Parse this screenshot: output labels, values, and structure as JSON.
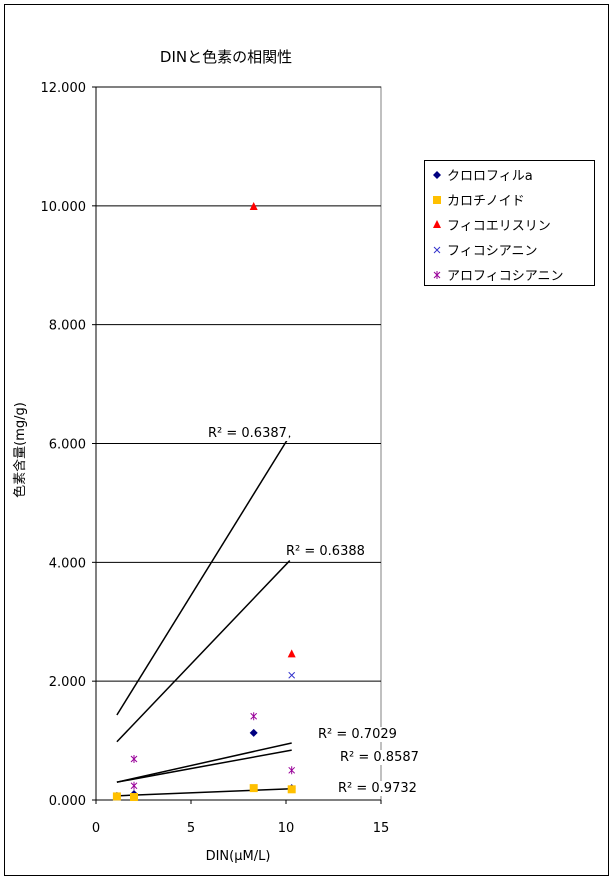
{
  "chart_data": {
    "type": "scatter",
    "title": "DINと色素の相関性",
    "xlabel": "DIN(μM/L)",
    "ylabel": "色素含量(mg/g)",
    "xlim": [
      0,
      15
    ],
    "ylim": [
      0,
      12
    ],
    "xticks": [
      0,
      5,
      10,
      15
    ],
    "yticks": [
      {
        "value": 0,
        "label": "0.000"
      },
      {
        "value": 2,
        "label": "2.000"
      },
      {
        "value": 4,
        "label": "4.000"
      },
      {
        "value": 6,
        "label": "6.000"
      },
      {
        "value": 8,
        "label": "8.000"
      },
      {
        "value": 10,
        "label": "10.000"
      },
      {
        "value": 12,
        "label": "12.000"
      }
    ],
    "grid": true,
    "legend": "right",
    "series": [
      {
        "name": "クロロフィルa",
        "color": "#000080",
        "marker": "diamond",
        "x": [
          1.1,
          2.0,
          8.3,
          10.3
        ],
        "values": [
          0.07,
          0.1,
          1.13,
          0.2
        ]
      },
      {
        "name": "カロチノイド",
        "color": "#FFC000",
        "marker": "square",
        "x": [
          1.1,
          2.0,
          8.3,
          10.3
        ],
        "values": [
          0.06,
          0.05,
          0.2,
          0.18
        ]
      },
      {
        "name": "フィコエリスリン",
        "color": "#FF0000",
        "marker": "triangle",
        "x": [
          8.3,
          10.3
        ],
        "values": [
          9.98,
          2.45
        ]
      },
      {
        "name": "フィコシアニン",
        "color": "#3333CC",
        "marker": "x",
        "x": [
          10.3
        ],
        "values": [
          2.1
        ]
      },
      {
        "name": "アロフィコシアニン",
        "color": "#990099",
        "marker": "asterisk",
        "x": [
          2.0,
          2.0,
          8.3,
          10.3
        ],
        "values": [
          0.69,
          0.24,
          1.41,
          0.5
        ]
      }
    ],
    "trendlines": [
      {
        "label": "R² = 0.6387",
        "color": "#FF0000",
        "x": [
          1.1,
          10.2
        ],
        "values": [
          1.43,
          6.13
        ]
      },
      {
        "label": "R² = 0.6388",
        "color": "#3333CC",
        "x": [
          1.1,
          10.2
        ],
        "values": [
          0.98,
          4.03
        ]
      },
      {
        "label": "R² = 0.7029",
        "color": "#990099",
        "x": [
          1.1,
          10.3
        ],
        "values": [
          0.3,
          0.96
        ]
      },
      {
        "label": "R² = 0.8587",
        "color": "#99CC00",
        "x": [
          1.1,
          10.3
        ],
        "values": [
          0.3,
          0.84
        ]
      },
      {
        "label": "R² = 0.9732",
        "color": "#FFCC00",
        "x": [
          1.1,
          10.3
        ],
        "values": [
          0.07,
          0.19
        ]
      }
    ]
  }
}
